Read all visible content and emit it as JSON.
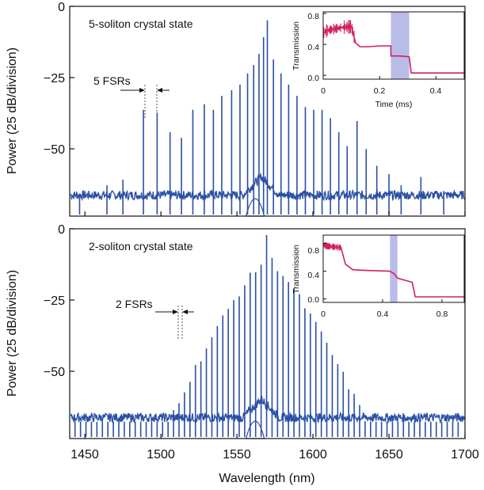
{
  "chart_data": [
    {
      "type": "line",
      "title": "5-soliton crystal state",
      "ylabel": "Power (25 dB/division)",
      "xlim": [
        1440,
        1700
      ],
      "ylim": [
        -75,
        0
      ],
      "yticks": [
        0,
        -25,
        -50
      ],
      "ytick_labels": [
        "0",
        "−25",
        "−50"
      ],
      "xticks": [
        1450,
        1500,
        1550,
        1600,
        1650,
        1700
      ],
      "annotation": "5 FSRs",
      "annotation_x": [
        1488.5,
        1497.5
      ],
      "series_color": "#2a4fa5",
      "peaks_x": [
        1446.5,
        1464.5,
        1475,
        1488.5,
        1497.5,
        1506,
        1513.5,
        1521,
        1528.5,
        1534.5,
        1540,
        1546.5,
        1552,
        1557,
        1561,
        1564.5,
        1567.5,
        1570,
        1574,
        1579,
        1584,
        1589.5,
        1595,
        1600.5,
        1606,
        1611.5,
        1617,
        1622.5,
        1629,
        1635,
        1642,
        1650,
        1658,
        1671,
        1686
      ],
      "peaks_y": [
        -68,
        -64,
        -62,
        -37,
        -38,
        -45,
        -47,
        -37,
        -35,
        -37,
        -32,
        -30,
        -28,
        -24,
        -21,
        -17,
        -11,
        -5,
        -19,
        -24,
        -28,
        -32,
        -36,
        -37,
        -37,
        -40,
        -45,
        -50,
        -41,
        -51,
        -57,
        -60,
        -64,
        -61,
        -66
      ],
      "inset": {
        "xlabel": "Time (ms)",
        "ylabel": "Transmission",
        "xlim": [
          0,
          0.5
        ],
        "ylim": [
          -0.05,
          0.82
        ],
        "xticks": [
          0,
          0.2,
          0.4
        ],
        "yticks": [
          0,
          0.4,
          0.8
        ],
        "xtick_labels": [
          "0",
          "0.2",
          "0.4"
        ],
        "ytick_labels": [
          "0.0",
          "0.4",
          "0.8"
        ],
        "highlight": [
          0.24,
          0.305
        ],
        "series_color": "#d0205e",
        "series_t": [
          0,
          0.015,
          0.04,
          0.07,
          0.1,
          0.115,
          0.13,
          0.16,
          0.2,
          0.24,
          0.2401,
          0.27,
          0.305,
          0.312,
          0.35,
          0.42,
          0.5
        ],
        "series_v": [
          0.55,
          0.58,
          0.6,
          0.62,
          0.63,
          0.42,
          0.37,
          0.37,
          0.38,
          0.38,
          0.25,
          0.25,
          0.24,
          0.03,
          0.03,
          0.03,
          0.03
        ]
      }
    },
    {
      "type": "line",
      "title": "2-soliton crystal state",
      "xlabel": "Wavelength (nm)",
      "ylabel": "Power (25 dB/division)",
      "xlim": [
        1440,
        1700
      ],
      "ylim": [
        -75,
        0
      ],
      "yticks": [
        0,
        -25,
        -50
      ],
      "ytick_labels": [
        "0",
        "−25",
        "−50"
      ],
      "xticks": [
        1450,
        1500,
        1550,
        1600,
        1650,
        1700
      ],
      "xtick_labels": [
        "1450",
        "1500",
        "1550",
        "1600",
        "1650",
        "1700"
      ],
      "annotation": "2 FSRs",
      "annotation_x": [
        1510.5,
        1514
      ],
      "series_color": "#2a4fa5",
      "spacing_nm": 3.6,
      "center_nm": 1569.5,
      "series_color_note": "comb lines every 3.6 nm, envelope peaks near 1569.5 nm",
      "inset": {
        "xlabel": "Time (ms)",
        "ylabel": "Transmission",
        "xlim": [
          0,
          0.95
        ],
        "ylim": [
          -0.05,
          0.92
        ],
        "xticks": [
          0,
          0.4,
          0.8
        ],
        "yticks": [
          0,
          0.4,
          0.8
        ],
        "xtick_labels": [
          "0",
          "0.4",
          "0.8"
        ],
        "ytick_labels": [
          "0.0",
          "0.4",
          "0.8"
        ],
        "highlight": [
          0.45,
          0.5
        ],
        "series_color": "#d0205e",
        "series_t": [
          0,
          0.03,
          0.12,
          0.15,
          0.2,
          0.3,
          0.45,
          0.48,
          0.5,
          0.55,
          0.6,
          0.62,
          0.66,
          0.8,
          0.95
        ],
        "series_v": [
          0.78,
          0.76,
          0.74,
          0.5,
          0.42,
          0.41,
          0.4,
          0.36,
          0.3,
          0.27,
          0.24,
          0.03,
          0.03,
          0.03,
          0.03
        ]
      }
    }
  ]
}
